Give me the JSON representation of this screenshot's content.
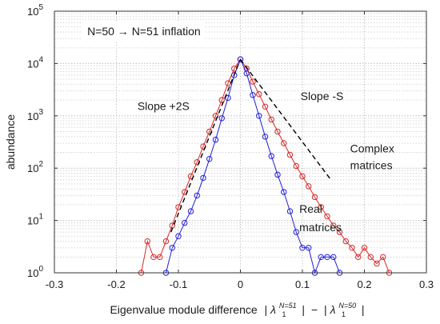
{
  "chart_data": {
    "type": "line",
    "title": "",
    "xlabel": "Eigenvalue module difference",
    "xlabel_math": {
      "lambda": "λ",
      "sub": "1",
      "sup_a": "N=51",
      "sup_b": "N=50",
      "minus": "−"
    },
    "ylabel": "abundance",
    "xlim": [
      -0.3,
      0.3
    ],
    "ylim": [
      1,
      100000
    ],
    "yscale": "log",
    "grid": "on (major + minor, dotted)",
    "xticks": [
      -0.3,
      -0.2,
      -0.1,
      0,
      0.1,
      0.2,
      0.3
    ],
    "xtick_labels": [
      "-0.3",
      "-0.2",
      "-0.1",
      "0",
      "0.1",
      "0.2",
      "0.3"
    ],
    "ytick_labels": [
      {
        "base": "10",
        "exp": "0"
      },
      {
        "base": "10",
        "exp": "1"
      },
      {
        "base": "10",
        "exp": "2"
      },
      {
        "base": "10",
        "exp": "3"
      },
      {
        "base": "10",
        "exp": "4"
      },
      {
        "base": "10",
        "exp": "5"
      }
    ],
    "series": [
      {
        "name": "Complex matrices",
        "color": "#d62728",
        "marker": "circle",
        "x": [
          -0.16,
          -0.15,
          -0.14,
          -0.13,
          -0.12,
          -0.11,
          -0.1,
          -0.09,
          -0.08,
          -0.07,
          -0.06,
          -0.05,
          -0.04,
          -0.03,
          -0.02,
          -0.01,
          0,
          0.01,
          0.02,
          0.03,
          0.04,
          0.05,
          0.06,
          0.07,
          0.08,
          0.09,
          0.1,
          0.11,
          0.12,
          0.13,
          0.14,
          0.15,
          0.16,
          0.17,
          0.18,
          0.19,
          0.2,
          0.21,
          0.22,
          0.23,
          0.24
        ],
        "y": [
          1,
          4,
          2,
          2,
          4,
          8,
          18,
          35,
          70,
          130,
          260,
          500,
          1000,
          2000,
          4200,
          8000,
          12000,
          8000,
          4500,
          2600,
          1500,
          850,
          500,
          300,
          180,
          110,
          70,
          45,
          28,
          18,
          12,
          8,
          6,
          4,
          3,
          2,
          3,
          2,
          1.5,
          2,
          1
        ]
      },
      {
        "name": "Real matrices",
        "color": "#1f1fd6",
        "marker": "circle",
        "x": [
          -0.12,
          -0.11,
          -0.1,
          -0.09,
          -0.08,
          -0.07,
          -0.06,
          -0.05,
          -0.04,
          -0.03,
          -0.02,
          -0.01,
          0,
          0.01,
          0.02,
          0.03,
          0.04,
          0.05,
          0.06,
          0.07,
          0.08,
          0.09,
          0.1,
          0.11,
          0.12,
          0.13,
          0.14,
          0.15,
          0.16
        ],
        "y": [
          1,
          3,
          5,
          9,
          15,
          30,
          65,
          150,
          350,
          900,
          2200,
          6000,
          12000,
          6500,
          2500,
          1000,
          400,
          170,
          75,
          35,
          15,
          6,
          3,
          3,
          1,
          2,
          2,
          2,
          1
        ]
      },
      {
        "name": "Slope +2S",
        "color": "#000000",
        "style": "dashed",
        "x": [
          -0.112,
          0
        ],
        "y": [
          6,
          12000
        ]
      },
      {
        "name": "Slope -S",
        "color": "#000000",
        "style": "dashed",
        "x": [
          0,
          0.146
        ],
        "y": [
          12000,
          60
        ]
      }
    ],
    "annotations": [
      {
        "text": "N=50 → N=51 inflation",
        "x": -0.247,
        "y": 35000
      },
      {
        "text": "Slope +2S",
        "x": -0.166,
        "y": 1300
      },
      {
        "text": "Slope -S",
        "x": 0.097,
        "y": 2000
      },
      {
        "text": "Complex",
        "x": 0.177,
        "y": 200,
        "color": "#d62728"
      },
      {
        "text": "matrices",
        "x": 0.177,
        "y": 95,
        "color": "#d62728"
      },
      {
        "text": "Real",
        "x": 0.095,
        "y": 14,
        "color": "#1f1fd6"
      },
      {
        "text": "matrices",
        "x": 0.095,
        "y": 6.2,
        "color": "#1f1fd6"
      }
    ]
  }
}
